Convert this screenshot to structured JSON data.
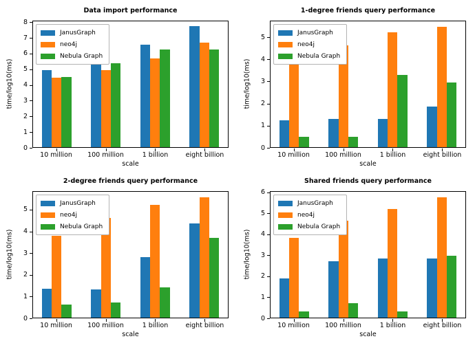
{
  "chart_data": [
    {
      "type": "bar",
      "title": "Data import performance",
      "xlabel": "scale",
      "ylabel": "time/log10(ms)",
      "categories": [
        "10 million",
        "100 million",
        "1 billion",
        "eight billion"
      ],
      "series": [
        {
          "name": "JanusGraph",
          "color": "#1f77b4",
          "values": [
            4.97,
            5.8,
            6.6,
            7.78
          ]
        },
        {
          "name": "neo4j",
          "color": "#ff7f0e",
          "values": [
            4.45,
            4.95,
            5.7,
            6.72
          ]
        },
        {
          "name": "Nebula Graph",
          "color": "#2ca02c",
          "values": [
            4.52,
            5.4,
            6.28,
            6.28
          ]
        }
      ],
      "ylim": [
        0,
        8.1
      ],
      "yticks": [
        0,
        1,
        2,
        3,
        4,
        5,
        6,
        7,
        8
      ],
      "legend_position": "upper left",
      "grid": false
    },
    {
      "type": "bar",
      "title": "1-degree friends query performance",
      "xlabel": "scale",
      "ylabel": "time/log10(ms)",
      "categories": [
        "10 million",
        "100 million",
        "1 billion",
        "eight billion"
      ],
      "series": [
        {
          "name": "JanusGraph",
          "color": "#1f77b4",
          "values": [
            1.22,
            1.3,
            1.3,
            1.85
          ]
        },
        {
          "name": "neo4j",
          "color": "#ff7f0e",
          "values": [
            3.8,
            4.65,
            5.25,
            5.5
          ]
        },
        {
          "name": "Nebula Graph",
          "color": "#2ca02c",
          "values": [
            0.48,
            0.47,
            3.3,
            2.95
          ]
        }
      ],
      "ylim": [
        0,
        5.75
      ],
      "yticks": [
        0,
        1,
        2,
        3,
        4,
        5
      ],
      "legend_position": "upper left",
      "grid": false
    },
    {
      "type": "bar",
      "title": "2-degree friends query performance",
      "xlabel": "scale",
      "ylabel": "time/log10(ms)",
      "categories": [
        "10 million",
        "100 million",
        "1 billion",
        "eight billion"
      ],
      "series": [
        {
          "name": "JanusGraph",
          "color": "#1f77b4",
          "values": [
            1.35,
            1.32,
            2.82,
            4.38
          ]
        },
        {
          "name": "neo4j",
          "color": "#ff7f0e",
          "values": [
            3.82,
            4.65,
            5.25,
            5.6
          ]
        },
        {
          "name": "Nebula Graph",
          "color": "#2ca02c",
          "values": [
            0.6,
            0.7,
            1.4,
            3.7
          ]
        }
      ],
      "ylim": [
        0,
        5.85
      ],
      "yticks": [
        0,
        1,
        2,
        3,
        4,
        5
      ],
      "legend_position": "upper left",
      "grid": false
    },
    {
      "type": "bar",
      "title": "Shared friends query performance",
      "xlabel": "scale",
      "ylabel": "time/log10(ms)",
      "categories": [
        "10 million",
        "100 million",
        "1 billion",
        "eight billion"
      ],
      "series": [
        {
          "name": "JanusGraph",
          "color": "#1f77b4",
          "values": [
            1.87,
            2.72,
            2.83,
            2.86
          ]
        },
        {
          "name": "neo4j",
          "color": "#ff7f0e",
          "values": [
            3.85,
            4.65,
            5.22,
            5.78
          ]
        },
        {
          "name": "Nebula Graph",
          "color": "#2ca02c",
          "values": [
            0.3,
            0.7,
            0.3,
            2.97
          ]
        }
      ],
      "ylim": [
        0,
        6.05
      ],
      "yticks": [
        0,
        1,
        2,
        3,
        4,
        5,
        6
      ],
      "legend_position": "upper left",
      "grid": false
    }
  ]
}
